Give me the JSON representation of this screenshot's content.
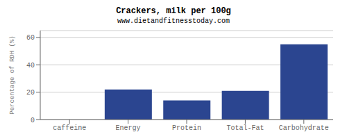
{
  "chart_data": {
    "type": "bar",
    "title": "Crackers, milk per 100g",
    "subtitle": "www.dietandfitnesstoday.com",
    "categories": [
      "caffeine",
      "Energy",
      "Protein",
      "Total-Fat",
      "Carbohydrate"
    ],
    "values": [
      0,
      22,
      14,
      21,
      55
    ],
    "color": "#2b4590",
    "ylabel": "Percentage of RDH (%)",
    "ylim": [
      0,
      65
    ],
    "yticks": [
      0,
      20,
      40,
      60
    ],
    "grid": true
  }
}
